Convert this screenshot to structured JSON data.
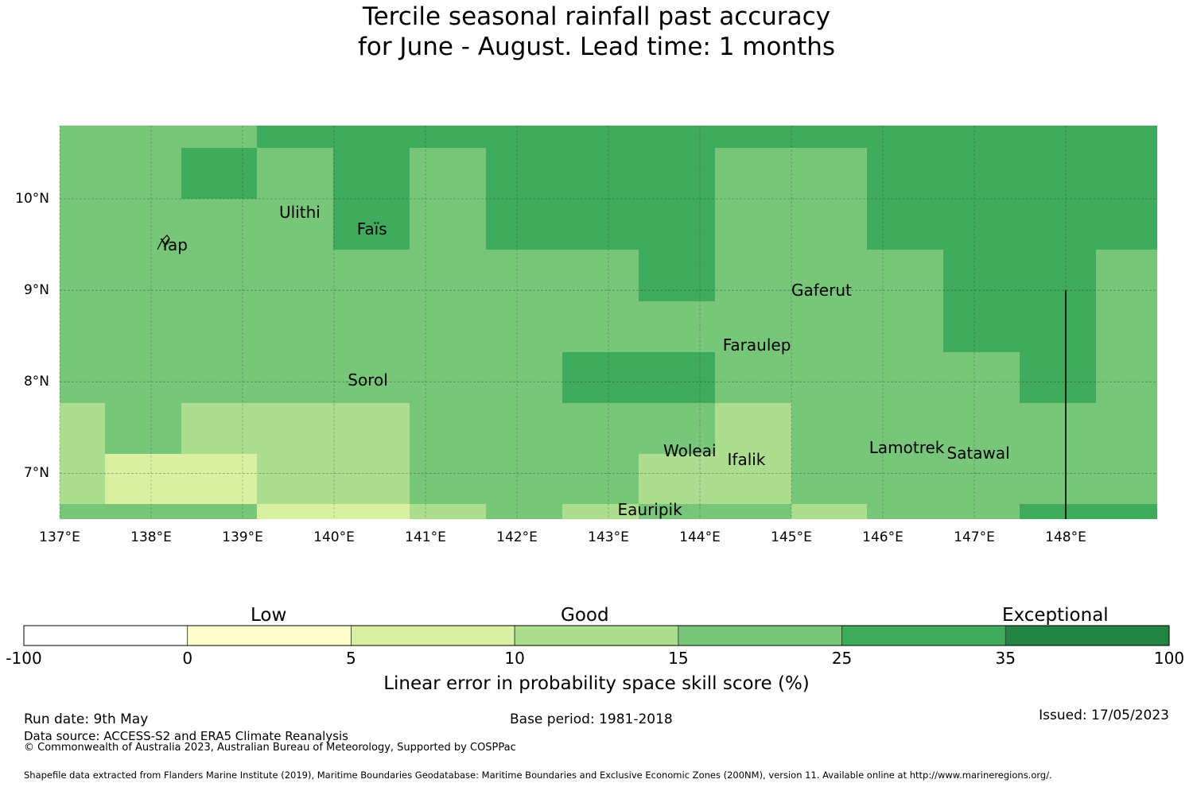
{
  "title": {
    "line1": "Tercile seasonal rainfall past accuracy",
    "line2": "for June - August. Lead time: 1 months"
  },
  "map": {
    "lon_range": [
      137.0,
      149.0
    ],
    "lat_range": [
      6.5,
      10.8
    ],
    "x_ticks": [
      "137°E",
      "138°E",
      "139°E",
      "140°E",
      "141°E",
      "142°E",
      "143°E",
      "144°E",
      "145°E",
      "146°E",
      "147°E",
      "148°E"
    ],
    "y_ticks": [
      "10°N",
      "9°N",
      "8°N",
      "7°N"
    ],
    "places": [
      {
        "name": "Yap",
        "lon": 138.1,
        "lat": 9.5
      },
      {
        "name": "Ulithi",
        "lon": 139.4,
        "lat": 9.85
      },
      {
        "name": "Faïs",
        "lon": 140.25,
        "lat": 9.67
      },
      {
        "name": "Gaferut",
        "lon": 145.0,
        "lat": 9.0
      },
      {
        "name": "Faraulep",
        "lon": 144.25,
        "lat": 8.4
      },
      {
        "name": "Sorol",
        "lon": 140.15,
        "lat": 8.02
      },
      {
        "name": "Woleai",
        "lon": 143.6,
        "lat": 7.25
      },
      {
        "name": "Ifalik",
        "lon": 144.3,
        "lat": 7.15
      },
      {
        "name": "Lamotrek",
        "lon": 145.85,
        "lat": 7.28
      },
      {
        "name": "Satawal",
        "lon": 146.7,
        "lat": 7.22
      },
      {
        "name": "Eauripik",
        "lon": 143.1,
        "lat": 6.6
      }
    ]
  },
  "colorbar": {
    "categories": [
      "Low",
      "Good",
      "Exceptional"
    ],
    "tick_labels": [
      "-100",
      "0",
      "5",
      "10",
      "15",
      "25",
      "35",
      "100"
    ],
    "colors": [
      "#ffffff",
      "#ffffcc",
      "#d9f0a3",
      "#addd8e",
      "#78c679",
      "#41ab5d",
      "#238443"
    ],
    "label": "Linear error in probability space skill score (%)"
  },
  "footer": {
    "run_date": "Run date: 9th May",
    "base_period": "Base period: 1981-2018",
    "issued": "Issued: 17/05/2023",
    "data_source": "Data source: ACCESS-S2 and ERA5 Climate Reanalysis",
    "copyright": "© Commonwealth of Australia 2023, Australian Bureau of Meteorology, Supported by COSPPac",
    "shapefile": "Shapefile data extracted from Flanders Marine Institute (2019), Maritime Boundaries Geodatabase: Maritime Boundaries and Exclusive Economic Zones (200NM), version 11. Available online at http://www.marineregions.org/."
  }
}
